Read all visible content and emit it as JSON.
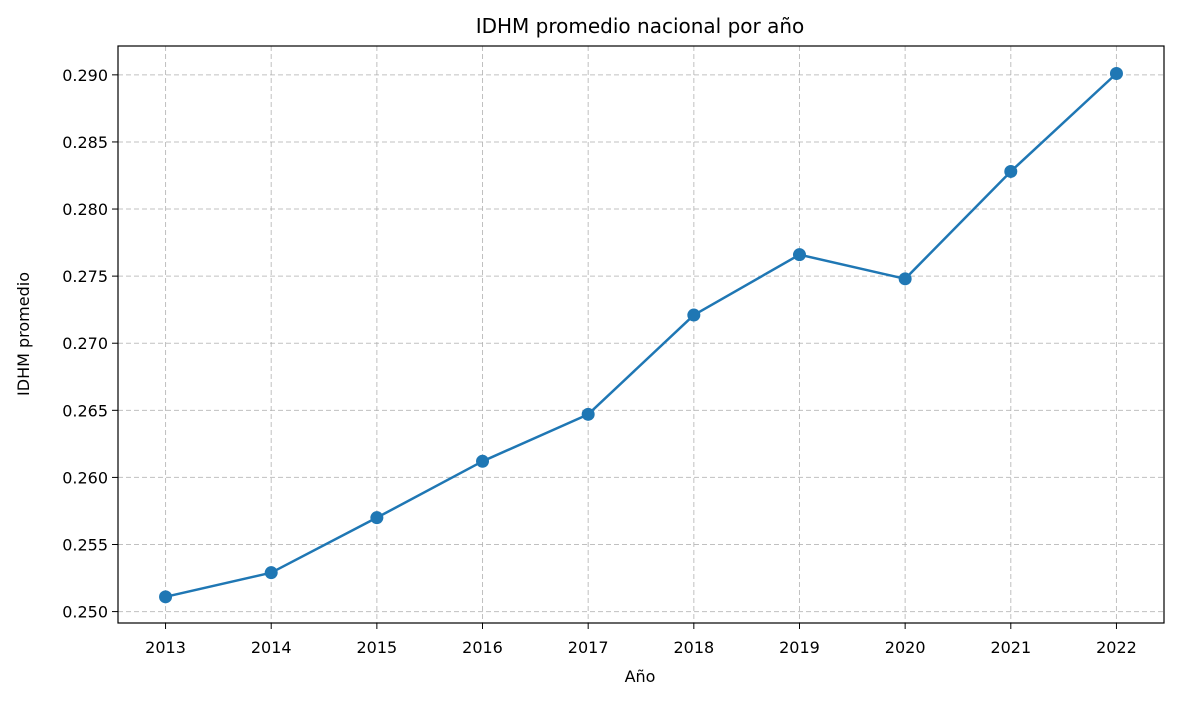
{
  "chart_data": {
    "type": "line",
    "title": "IDHM promedio nacional por año",
    "xlabel": "Año",
    "ylabel": "IDHM promedio",
    "x": [
      2013,
      2014,
      2015,
      2016,
      2017,
      2018,
      2019,
      2020,
      2021,
      2022
    ],
    "x_tick_labels": [
      "2013",
      "2014",
      "2015",
      "2016",
      "2017",
      "2018",
      "2019",
      "2020",
      "2021",
      "2022"
    ],
    "series": [
      {
        "values": [
          0.2511,
          0.2529,
          0.257,
          0.2612,
          0.2647,
          0.2721,
          0.2766,
          0.2748,
          0.2828,
          0.2901
        ],
        "color": "#1f77b4",
        "marker": "circle"
      }
    ],
    "y_ticks": [
      0.25,
      0.255,
      0.26,
      0.265,
      0.27,
      0.275,
      0.28,
      0.285,
      0.29
    ],
    "y_tick_labels": [
      "0.250",
      "0.255",
      "0.260",
      "0.265",
      "0.270",
      "0.275",
      "0.280",
      "0.285",
      "0.290"
    ],
    "xlim": [
      2012.55,
      2022.45
    ],
    "ylim": [
      0.24915,
      0.29215
    ],
    "grid": true,
    "grid_style": "dashed",
    "legend": false
  }
}
